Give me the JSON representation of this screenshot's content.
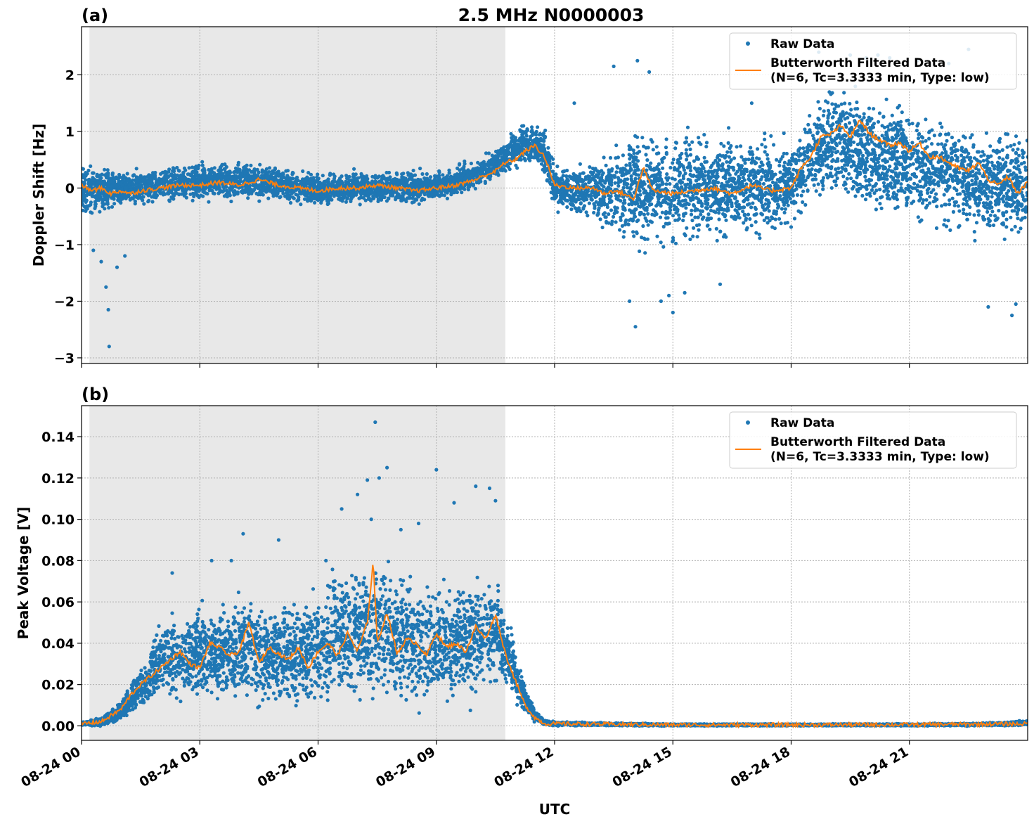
{
  "title": "2.5 MHz N0000003",
  "xlabel": "UTC",
  "legend": {
    "raw_label": "Raw Data",
    "filtered_label_line1": "Butterworth Filtered Data",
    "filtered_label_line2": "(N=6, Tc=3.3333 min, Type: low)"
  },
  "colors": {
    "raw": "#1f77b4",
    "filtered": "#ff7f0e",
    "shade": "#e8e8e8",
    "grid": "#b0b0b0"
  },
  "chart_data": [
    {
      "type": "scatter",
      "panel_label": "(a)",
      "ylabel": "Doppler Shift [Hz]",
      "xlim": [
        0,
        24
      ],
      "ylim": [
        -3.1,
        2.85
      ],
      "x_ticks": [
        0,
        3,
        6,
        9,
        12,
        15,
        18,
        21
      ],
      "x_tick_labels": [
        "08-24 00",
        "08-24 03",
        "08-24 06",
        "08-24 09",
        "08-24 12",
        "08-24 15",
        "08-24 18",
        "08-24 21"
      ],
      "y_ticks": [
        -3,
        -2,
        -1,
        0,
        1,
        2
      ],
      "y_tick_labels": [
        "−3",
        "−2",
        "−1",
        "0",
        "1",
        "2"
      ],
      "shaded_region": [
        0.2,
        10.75
      ],
      "grid": true,
      "legend_position": "top-right",
      "series": [
        {
          "name": "Raw Data",
          "style": "scatter-band",
          "band": {
            "x": [
              0,
              0.5,
              1.0,
              1.5,
              2.0,
              3.0,
              4.0,
              5.0,
              6.0,
              7.0,
              8.0,
              9.0,
              10.0,
              10.75,
              11.25,
              11.75,
              12.0,
              13.0,
              14.0,
              15.0,
              16.0,
              17.0,
              18.0,
              18.5,
              19.0,
              20.0,
              21.0,
              22.0,
              23.0,
              24.0
            ],
            "upper": [
              0.5,
              0.35,
              0.3,
              0.3,
              0.4,
              0.45,
              0.45,
              0.4,
              0.25,
              0.3,
              0.3,
              0.3,
              0.5,
              0.85,
              1.15,
              1.1,
              0.35,
              0.5,
              1.1,
              1.0,
              1.0,
              0.9,
              0.8,
              1.5,
              1.8,
              1.7,
              1.5,
              1.3,
              1.1,
              1.0
            ],
            "lower": [
              -0.5,
              -0.45,
              -0.35,
              -0.3,
              -0.25,
              -0.25,
              -0.2,
              -0.25,
              -0.3,
              -0.3,
              -0.25,
              -0.25,
              -0.05,
              0.25,
              0.45,
              0.25,
              -0.4,
              -0.6,
              -1.1,
              -1.1,
              -0.95,
              -0.9,
              -0.7,
              -0.3,
              -0.2,
              -0.5,
              -0.6,
              -0.8,
              -1.0,
              -1.0
            ]
          },
          "outliers": {
            "x": [
              0.3,
              0.5,
              0.62,
              0.68,
              0.7,
              0.9,
              1.1,
              13.5,
              13.9,
              14.05,
              14.1,
              14.4,
              14.7,
              14.9,
              15.0,
              15.3,
              16.2,
              19.5,
              19.9,
              20.2,
              20.5,
              21.2,
              22.0,
              22.5,
              23.0,
              23.6,
              23.7,
              17.0,
              12.5,
              18.7
            ],
            "y": [
              -1.1,
              -1.3,
              -1.75,
              -2.15,
              -2.8,
              -1.4,
              -1.2,
              2.15,
              -2.0,
              -2.45,
              2.25,
              2.05,
              -2.0,
              -1.9,
              -2.2,
              -1.85,
              -1.7,
              2.35,
              2.3,
              2.35,
              2.3,
              2.25,
              2.2,
              2.45,
              -2.1,
              -2.25,
              -2.05,
              1.5,
              1.5,
              2.4
            ]
          }
        },
        {
          "name": "Butterworth Filtered Data",
          "style": "line",
          "x": [
            0,
            0.25,
            0.5,
            0.75,
            1.0,
            1.25,
            1.5,
            2.0,
            2.5,
            3.0,
            3.5,
            4.0,
            4.5,
            5.0,
            5.5,
            6.0,
            6.5,
            7.0,
            7.5,
            8.0,
            8.5,
            9.0,
            9.5,
            10.0,
            10.5,
            10.75,
            11.0,
            11.25,
            11.5,
            11.75,
            12.0,
            12.5,
            13.0,
            13.25,
            13.5,
            13.75,
            14.0,
            14.25,
            14.5,
            15.0,
            15.5,
            16.0,
            16.5,
            17.0,
            17.5,
            18.0,
            18.25,
            18.5,
            18.75,
            19.0,
            19.25,
            19.5,
            19.75,
            20.0,
            20.25,
            20.5,
            20.75,
            21.0,
            21.25,
            21.5,
            21.75,
            22.0,
            22.25,
            22.5,
            22.75,
            23.0,
            23.25,
            23.5,
            23.75,
            24.0
          ],
          "y": [
            0.05,
            -0.05,
            0.0,
            -0.1,
            -0.05,
            -0.1,
            -0.05,
            0.0,
            0.05,
            0.05,
            0.1,
            0.05,
            0.15,
            0.05,
            0.0,
            -0.05,
            0.0,
            0.0,
            0.05,
            0.0,
            -0.05,
            0.0,
            0.05,
            0.15,
            0.3,
            0.45,
            0.5,
            0.65,
            0.75,
            0.55,
            0.05,
            0.0,
            0.0,
            -0.1,
            -0.05,
            -0.1,
            -0.2,
            0.35,
            -0.05,
            -0.1,
            -0.05,
            0.0,
            -0.1,
            0.05,
            -0.05,
            0.0,
            0.35,
            0.55,
            0.9,
            0.95,
            1.1,
            0.9,
            1.2,
            0.95,
            0.85,
            0.75,
            0.8,
            0.65,
            0.8,
            0.55,
            0.55,
            0.45,
            0.35,
            0.3,
            0.45,
            0.15,
            0.05,
            0.2,
            -0.1,
            0.1
          ]
        }
      ]
    },
    {
      "type": "scatter",
      "panel_label": "(b)",
      "ylabel": "Peak Voltage [V]",
      "xlim": [
        0,
        24
      ],
      "ylim": [
        -0.007,
        0.155
      ],
      "x_ticks": [
        0,
        3,
        6,
        9,
        12,
        15,
        18,
        21
      ],
      "x_tick_labels": [
        "08-24 00",
        "08-24 03",
        "08-24 06",
        "08-24 09",
        "08-24 12",
        "08-24 15",
        "08-24 18",
        "08-24 21"
      ],
      "y_ticks": [
        0.0,
        0.02,
        0.04,
        0.06,
        0.08,
        0.1,
        0.12,
        0.14
      ],
      "y_tick_labels": [
        "0.00",
        "0.02",
        "0.04",
        "0.06",
        "0.08",
        "0.10",
        "0.12",
        "0.14"
      ],
      "shaded_region": [
        0.2,
        10.75
      ],
      "grid": true,
      "legend_position": "top-right",
      "series": [
        {
          "name": "Raw Data",
          "style": "scatter-band",
          "band": {
            "x": [
              0,
              0.5,
              1.0,
              1.5,
              2.0,
              2.5,
              3.0,
              3.5,
              4.0,
              4.5,
              5.0,
              5.5,
              6.0,
              6.5,
              7.0,
              7.5,
              8.0,
              8.5,
              9.0,
              9.5,
              10.0,
              10.5,
              10.75,
              11.0,
              11.25,
              11.5,
              11.75,
              12.0,
              15.0,
              18.0,
              21.0,
              23.0,
              23.5,
              24.0
            ],
            "upper": [
              0.002,
              0.004,
              0.012,
              0.03,
              0.05,
              0.055,
              0.06,
              0.058,
              0.065,
              0.06,
              0.058,
              0.065,
              0.065,
              0.075,
              0.078,
              0.085,
              0.075,
              0.072,
              0.068,
              0.07,
              0.07,
              0.075,
              0.055,
              0.04,
              0.02,
              0.008,
              0.003,
              0.002,
              0.001,
              0.001,
              0.001,
              0.0015,
              0.002,
              0.003
            ],
            "lower": [
              0.0,
              0.0,
              0.002,
              0.008,
              0.012,
              0.012,
              0.012,
              0.01,
              0.012,
              0.01,
              0.008,
              0.01,
              0.01,
              0.012,
              0.012,
              0.012,
              0.012,
              0.01,
              0.01,
              0.012,
              0.015,
              0.02,
              0.02,
              0.012,
              0.006,
              0.002,
              0.0005,
              0.0,
              0.0,
              0.0,
              0.0,
              0.0,
              0.0,
              0.0
            ]
          },
          "outliers": {
            "x": [
              2.3,
              3.3,
              3.8,
              4.1,
              5.0,
              6.2,
              6.6,
              7.0,
              7.25,
              7.35,
              7.45,
              7.55,
              7.75,
              8.1,
              8.55,
              9.0,
              9.45,
              10.0,
              10.35,
              10.5
            ],
            "y": [
              0.074,
              0.08,
              0.08,
              0.093,
              0.09,
              0.08,
              0.105,
              0.112,
              0.119,
              0.1,
              0.147,
              0.12,
              0.125,
              0.095,
              0.098,
              0.124,
              0.108,
              0.116,
              0.115,
              0.109
            ]
          }
        },
        {
          "name": "Butterworth Filtered Data",
          "style": "line",
          "x": [
            0,
            0.5,
            1.0,
            1.25,
            1.5,
            1.75,
            2.0,
            2.25,
            2.5,
            2.75,
            3.0,
            3.25,
            3.5,
            3.75,
            4.0,
            4.25,
            4.5,
            4.75,
            5.0,
            5.25,
            5.5,
            5.75,
            6.0,
            6.25,
            6.5,
            6.75,
            7.0,
            7.25,
            7.4,
            7.5,
            7.75,
            8.0,
            8.25,
            8.5,
            8.75,
            9.0,
            9.25,
            9.5,
            9.75,
            10.0,
            10.25,
            10.5,
            10.75,
            11.0,
            11.25,
            11.5,
            11.75,
            12.0,
            15.0,
            18.0,
            21.0,
            24.0
          ],
          "y": [
            0.001,
            0.002,
            0.008,
            0.015,
            0.02,
            0.024,
            0.028,
            0.032,
            0.036,
            0.03,
            0.028,
            0.04,
            0.038,
            0.034,
            0.036,
            0.05,
            0.03,
            0.038,
            0.035,
            0.032,
            0.038,
            0.028,
            0.036,
            0.04,
            0.034,
            0.045,
            0.036,
            0.05,
            0.08,
            0.04,
            0.055,
            0.035,
            0.042,
            0.04,
            0.034,
            0.045,
            0.038,
            0.04,
            0.036,
            0.048,
            0.042,
            0.054,
            0.035,
            0.022,
            0.01,
            0.004,
            0.001,
            0.001,
            0.0005,
            0.0005,
            0.0006,
            0.001
          ]
        }
      ]
    }
  ]
}
